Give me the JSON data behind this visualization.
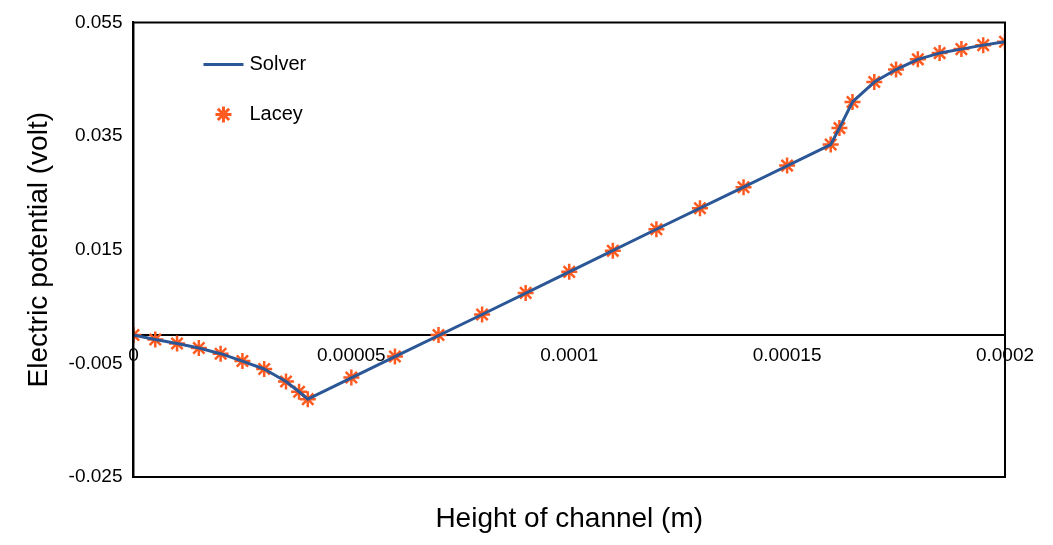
{
  "chart_data": {
    "type": "line",
    "xlabel": "Height of channel (m)",
    "ylabel": "Electric potential (volt)",
    "xlim": [
      0,
      0.0002
    ],
    "ylim": [
      -0.025,
      0.055
    ],
    "xticks": [
      {
        "value": 0,
        "label": "0"
      },
      {
        "value": 5e-05,
        "label": "0.00005"
      },
      {
        "value": 0.0001,
        "label": "0.0001"
      },
      {
        "value": 0.00015,
        "label": "0.00015"
      },
      {
        "value": 0.0002,
        "label": "0.0002"
      }
    ],
    "yticks": [
      -0.025,
      -0.005,
      0.015,
      0.035,
      0.055
    ],
    "grid": false,
    "legend": "top left",
    "series": [
      {
        "name": "Solver",
        "color": "#2b5797",
        "marker": "none",
        "x": [
          0,
          5e-06,
          1e-05,
          1.5e-05,
          2e-05,
          2.5e-05,
          3e-05,
          3.5e-05,
          3.8e-05,
          4e-05,
          6e-05,
          8e-05,
          0.0001,
          0.00012,
          0.00014,
          0.00016,
          0.000162,
          0.000165,
          0.00017,
          0.000175,
          0.00018,
          0.000185,
          0.00019,
          0.000195,
          0.0002
        ],
        "values": [
          0,
          -0.0008,
          -0.0015,
          -0.0023,
          -0.0033,
          -0.0046,
          -0.006,
          -0.0082,
          -0.01,
          -0.0113,
          -0.0038,
          0.0036,
          0.0111,
          0.0186,
          0.026,
          0.0335,
          0.0364,
          0.041,
          0.0445,
          0.0467,
          0.0485,
          0.0496,
          0.0503,
          0.051,
          0.0516
        ]
      },
      {
        "name": "Lacey",
        "type": "scatter",
        "color": "#ff5a1f",
        "marker": "cross",
        "x": [
          0,
          5e-06,
          1e-05,
          1.5e-05,
          2e-05,
          2.5e-05,
          3e-05,
          3.5e-05,
          3.8e-05,
          4e-05,
          5e-05,
          6e-05,
          7e-05,
          8e-05,
          9e-05,
          0.0001,
          0.00011,
          0.00012,
          0.00013,
          0.00014,
          0.00015,
          0.00016,
          0.000162,
          0.000165,
          0.00017,
          0.000175,
          0.00018,
          0.000185,
          0.00019,
          0.000195,
          0.0002
        ],
        "values": [
          0,
          -0.0008,
          -0.0015,
          -0.0023,
          -0.0033,
          -0.0046,
          -0.006,
          -0.0082,
          -0.01,
          -0.0113,
          -0.0075,
          -0.0038,
          0,
          0.0036,
          0.0074,
          0.0111,
          0.0148,
          0.0186,
          0.0223,
          0.026,
          0.0298,
          0.0335,
          0.0364,
          0.041,
          0.0445,
          0.0467,
          0.0485,
          0.0496,
          0.0503,
          0.051,
          0.0516
        ]
      }
    ]
  }
}
